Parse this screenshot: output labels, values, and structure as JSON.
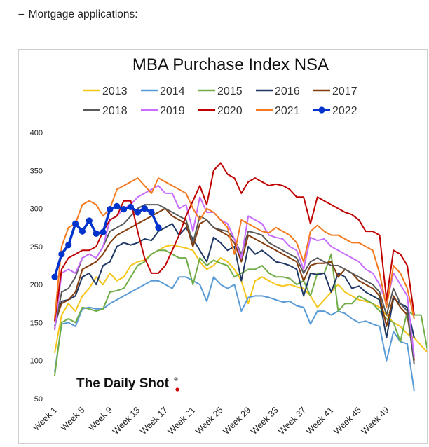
{
  "caption": {
    "bullet": "–",
    "text": "Mortgage applications:"
  },
  "watermark": "The Daily Shot",
  "watermark_mark": "®",
  "chart_data": {
    "type": "line",
    "title": "MBA Purchase Index NSA",
    "xlabel": "",
    "ylabel": "",
    "ylim": [
      50,
      400
    ],
    "yticks": [
      50,
      100,
      150,
      200,
      250,
      300,
      350,
      400
    ],
    "xlim": [
      1,
      52
    ],
    "xtick_labels": [
      "Week 1",
      "Week 5",
      "Week 9",
      "Week 13",
      "Week 17",
      "Week 21",
      "Week 25",
      "Week 29",
      "Week 33",
      "Week 37",
      "Week 41",
      "Week 45",
      "Week 49"
    ],
    "xtick_weeks": [
      1,
      5,
      9,
      13,
      17,
      21,
      25,
      29,
      33,
      37,
      41,
      45,
      49
    ],
    "grid": false,
    "legend_position": "top",
    "series": [
      {
        "name": "2013",
        "color": "#f5c518",
        "values": [
          110,
          160,
          175,
          165,
          185,
          195,
          210,
          200,
          215,
          205,
          210,
          225,
          230,
          232,
          240,
          245,
          250,
          252,
          250,
          248,
          245,
          230,
          220,
          225,
          235,
          230,
          220,
          205,
          175,
          205,
          210,
          205,
          200,
          198,
          200,
          197,
          195,
          185,
          170,
          180,
          190,
          200,
          190,
          185,
          180,
          178,
          175,
          170,
          160,
          150,
          145,
          135,
          130,
          120,
          110,
          65
        ]
      },
      {
        "name": "2014",
        "color": "#5b9bd5",
        "values": [
          85,
          148,
          150,
          145,
          168,
          170,
          168,
          168,
          175,
          180,
          185,
          190,
          195,
          200,
          205,
          205,
          200,
          195,
          210,
          210,
          205,
          200,
          178,
          210,
          200,
          195,
          200,
          165,
          183,
          185,
          185,
          183,
          180,
          177,
          178,
          172,
          170,
          148,
          165,
          165,
          160,
          165,
          162,
          155,
          150,
          152,
          148,
          145,
          100,
          138,
          125,
          122,
          60
        ]
      },
      {
        "name": "2015",
        "color": "#70ad47",
        "values": [
          80,
          150,
          155,
          150,
          170,
          168,
          165,
          168,
          190,
          192,
          195,
          210,
          225,
          230,
          240,
          245,
          245,
          240,
          235,
          235,
          200,
          235,
          225,
          232,
          228,
          225,
          210,
          215,
          220,
          220,
          225,
          215,
          210,
          210,
          208,
          200,
          205,
          185,
          215,
          215,
          240,
          165,
          175,
          175,
          185,
          180,
          175,
          165,
          155,
          150,
          125,
          165,
          160,
          160,
          110
        ]
      },
      {
        "name": "2016",
        "color": "#1f3864",
        "values": [
          145,
          178,
          180,
          185,
          210,
          215,
          200,
          225,
          230,
          250,
          255,
          252,
          255,
          260,
          258,
          270,
          275,
          280,
          265,
          275,
          260,
          245,
          230,
          262,
          255,
          245,
          250,
          205,
          250,
          240,
          245,
          238,
          230,
          228,
          225,
          220,
          185,
          215,
          213,
          215,
          190,
          215,
          210,
          195,
          198,
          190,
          185,
          180,
          130,
          182,
          175,
          170,
          130
        ]
      },
      {
        "name": "2017",
        "color": "#843c0c",
        "values": [
          150,
          175,
          180,
          190,
          220,
          225,
          230,
          240,
          255,
          265,
          270,
          275,
          280,
          285,
          290,
          295,
          300,
          290,
          285,
          280,
          250,
          280,
          285,
          275,
          270,
          265,
          255,
          230,
          265,
          260,
          255,
          250,
          245,
          240,
          235,
          230,
          205,
          225,
          228,
          228,
          230,
          210,
          220,
          215,
          205,
          200,
          195,
          185,
          145,
          185,
          170,
          160,
          100
        ]
      },
      {
        "name": "2018",
        "color": "#595959",
        "values": [
          142,
          190,
          195,
          210,
          235,
          240,
          235,
          250,
          270,
          275,
          280,
          290,
          300,
          305,
          305,
          305,
          300,
          295,
          290,
          285,
          255,
          290,
          285,
          275,
          272,
          270,
          260,
          240,
          270,
          268,
          265,
          255,
          250,
          245,
          240,
          235,
          215,
          230,
          235,
          230,
          225,
          225,
          220,
          215,
          210,
          205,
          200,
          190,
          160,
          195,
          175,
          165,
          95
        ]
      },
      {
        "name": "2019",
        "color": "#c86dff",
        "values": [
          140,
          215,
          220,
          215,
          235,
          240,
          235,
          250,
          285,
          290,
          300,
          305,
          315,
          320,
          325,
          330,
          320,
          320,
          300,
          305,
          270,
          315,
          295,
          295,
          285,
          280,
          260,
          235,
          290,
          285,
          280,
          265,
          262,
          260,
          250,
          245,
          220,
          262,
          258,
          260,
          250,
          245,
          240,
          235,
          230,
          220,
          215,
          200,
          175,
          215,
          200,
          185,
          105
        ]
      },
      {
        "name": "2020",
        "color": "#c00000",
        "values": [
          152,
          220,
          235,
          240,
          245,
          245,
          250,
          270,
          285,
          290,
          310,
          310,
          270,
          235,
          215,
          215,
          225,
          245,
          265,
          290,
          310,
          330,
          305,
          350,
          360,
          345,
          340,
          320,
          335,
          340,
          335,
          330,
          332,
          330,
          325,
          315,
          315,
          280,
          315,
          310,
          305,
          300,
          295,
          292,
          285,
          270,
          270,
          265,
          180,
          245,
          240,
          225,
          160
        ]
      },
      {
        "name": "2021",
        "color": "#f47a20",
        "values": [
          155,
          250,
          275,
          280,
          305,
          310,
          305,
          290,
          300,
          325,
          330,
          335,
          340,
          330,
          320,
          340,
          335,
          330,
          325,
          320,
          300,
          285,
          300,
          295,
          285,
          275,
          240,
          285,
          280,
          275,
          270,
          268,
          275,
          270,
          265,
          255,
          230,
          270,
          278,
          270,
          265,
          265,
          260,
          255,
          255,
          250,
          245,
          215,
          170,
          225,
          215,
          195,
          155
        ]
      },
      {
        "name": "2022",
        "color": "#0033cc",
        "marker": "circle",
        "values": [
          210,
          240,
          252,
          280,
          270,
          284,
          267,
          269,
          299,
          303,
          299,
          302,
          295,
          300,
          295,
          275
        ]
      }
    ]
  }
}
